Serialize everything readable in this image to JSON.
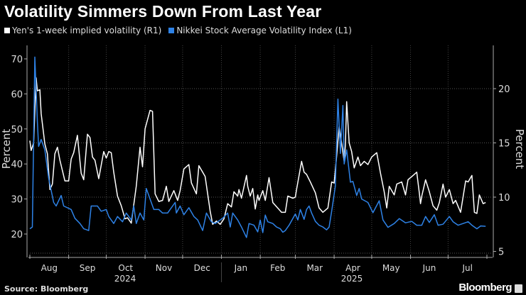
{
  "title": "Volatility Simmers Down From Last Year",
  "source": "Source: Bloomberg",
  "brand": "Bloomberg",
  "chart_data": {
    "type": "line",
    "title": "Volatility Simmers Down From Last Year",
    "y_left": {
      "label": "Percent",
      "range": [
        17,
        73
      ],
      "ticks": [
        20,
        30,
        40,
        50,
        60,
        70
      ]
    },
    "y_right": {
      "label": "Percent",
      "range": [
        4.5,
        24.2
      ],
      "ticks": [
        5,
        10,
        15,
        20
      ]
    },
    "x_range": [
      "2024-08-01",
      "2025-08-01"
    ],
    "x_ticks": [
      "Aug",
      "Sep",
      "Oct",
      "Nov",
      "Dec",
      "Jan",
      "Feb",
      "Mar",
      "Apr",
      "May",
      "Jun",
      "Jul"
    ],
    "x_years": [
      "2024",
      "2025"
    ],
    "grid": true,
    "legend_position": "top-left",
    "series": [
      {
        "name": "Yen's 1-week implied volatility (R1)",
        "axis": "right",
        "color": "#ffffff",
        "points": [
          [
            "2024-08-01",
            15.2
          ],
          [
            "2024-08-02",
            14.3
          ],
          [
            "2024-08-04",
            15.0
          ],
          [
            "2024-08-06",
            21.0
          ],
          [
            "2024-08-07",
            19.8
          ],
          [
            "2024-08-09",
            19.9
          ],
          [
            "2024-08-10",
            17.7
          ],
          [
            "2024-08-13",
            14.9
          ],
          [
            "2024-08-15",
            14.0
          ],
          [
            "2024-08-17",
            10.7
          ],
          [
            "2024-08-19",
            11.2
          ],
          [
            "2024-08-21",
            14.0
          ],
          [
            "2024-08-23",
            14.6
          ],
          [
            "2024-08-25",
            13.4
          ],
          [
            "2024-08-29",
            11.5
          ],
          [
            "2024-09-01",
            11.5
          ],
          [
            "2024-09-03",
            13.5
          ],
          [
            "2024-09-05",
            14.1
          ],
          [
            "2024-09-08",
            15.7
          ],
          [
            "2024-09-11",
            12.2
          ],
          [
            "2024-09-13",
            11.6
          ],
          [
            "2024-09-16",
            15.8
          ],
          [
            "2024-09-18",
            15.5
          ],
          [
            "2024-09-20",
            13.7
          ],
          [
            "2024-09-22",
            13.4
          ],
          [
            "2024-09-25",
            11.7
          ],
          [
            "2024-09-29",
            14.2
          ],
          [
            "2024-10-01",
            13.6
          ],
          [
            "2024-10-03",
            14.2
          ],
          [
            "2024-10-05",
            14.1
          ],
          [
            "2024-10-07",
            12.3
          ],
          [
            "2024-10-10",
            10.1
          ],
          [
            "2024-10-13",
            9.2
          ],
          [
            "2024-10-16",
            8.0
          ],
          [
            "2024-10-18",
            8.1
          ],
          [
            "2024-10-21",
            7.6
          ],
          [
            "2024-10-25",
            11.0
          ],
          [
            "2024-10-28",
            14.6
          ],
          [
            "2024-10-30",
            12.8
          ],
          [
            "2024-11-01",
            16.3
          ],
          [
            "2024-11-05",
            18.0
          ],
          [
            "2024-11-07",
            17.9
          ],
          [
            "2024-11-09",
            10.3
          ],
          [
            "2024-11-12",
            9.6
          ],
          [
            "2024-11-15",
            9.7
          ],
          [
            "2024-11-18",
            11.0
          ],
          [
            "2024-11-20",
            9.6
          ],
          [
            "2024-11-24",
            10.6
          ],
          [
            "2024-11-27",
            9.7
          ],
          [
            "2024-11-29",
            10.6
          ],
          [
            "2024-12-02",
            12.6
          ],
          [
            "2024-12-06",
            13.0
          ],
          [
            "2024-12-08",
            11.3
          ],
          [
            "2024-12-12",
            10.3
          ],
          [
            "2024-12-14",
            12.9
          ],
          [
            "2024-12-17",
            12.3
          ],
          [
            "2024-12-19",
            11.9
          ],
          [
            "2024-12-23",
            8.7
          ],
          [
            "2024-12-25",
            7.5
          ],
          [
            "2024-12-28",
            7.8
          ],
          [
            "2024-12-31",
            7.5
          ],
          [
            "2025-01-03",
            8.0
          ],
          [
            "2025-01-06",
            9.4
          ],
          [
            "2025-01-09",
            9.1
          ],
          [
            "2025-01-11",
            10.5
          ],
          [
            "2025-01-14",
            10.1
          ],
          [
            "2025-01-15",
            10.7
          ],
          [
            "2025-01-17",
            9.9
          ],
          [
            "2025-01-21",
            12.0
          ],
          [
            "2025-01-22",
            11.0
          ],
          [
            "2025-01-24",
            10.1
          ],
          [
            "2025-01-26",
            10.8
          ],
          [
            "2025-01-28",
            8.9
          ],
          [
            "2025-01-30",
            10.2
          ],
          [
            "2025-01-31",
            9.7
          ],
          [
            "2025-02-03",
            10.6
          ],
          [
            "2025-02-05",
            9.7
          ],
          [
            "2025-02-08",
            11.8
          ],
          [
            "2025-02-11",
            9.5
          ],
          [
            "2025-02-18",
            8.6
          ],
          [
            "2025-02-21",
            8.6
          ],
          [
            "2025-02-23",
            10.1
          ],
          [
            "2025-02-27",
            9.9
          ],
          [
            "2025-03-01",
            10.0
          ],
          [
            "2025-03-02",
            10.7
          ],
          [
            "2025-03-06",
            13.3
          ],
          [
            "2025-03-08",
            12.3
          ],
          [
            "2025-03-10",
            12.1
          ],
          [
            "2025-03-13",
            11.4
          ],
          [
            "2025-03-17",
            10.4
          ],
          [
            "2025-03-20",
            9.0
          ],
          [
            "2025-03-23",
            8.6
          ],
          [
            "2025-03-27",
            9.0
          ],
          [
            "2025-03-30",
            11.4
          ],
          [
            "2025-04-01",
            11.3
          ],
          [
            "2025-04-03",
            13.8
          ],
          [
            "2025-04-05",
            16.5
          ],
          [
            "2025-04-07",
            15.0
          ],
          [
            "2025-04-09",
            13.3
          ],
          [
            "2025-04-10",
            14.8
          ],
          [
            "2025-04-11",
            18.8
          ],
          [
            "2025-04-13",
            15.0
          ],
          [
            "2025-04-15",
            14.2
          ],
          [
            "2025-04-17",
            12.7
          ],
          [
            "2025-04-20",
            13.7
          ],
          [
            "2025-04-22",
            12.9
          ],
          [
            "2025-04-25",
            13.3
          ],
          [
            "2025-04-28",
            13.0
          ],
          [
            "2025-05-01",
            13.7
          ],
          [
            "2025-05-05",
            14.1
          ],
          [
            "2025-05-08",
            12.2
          ],
          [
            "2025-05-11",
            10.5
          ],
          [
            "2025-05-13",
            9.0
          ],
          [
            "2025-05-15",
            11.0
          ],
          [
            "2025-05-19",
            10.2
          ],
          [
            "2025-05-21",
            11.2
          ],
          [
            "2025-05-25",
            11.4
          ],
          [
            "2025-05-28",
            10.2
          ],
          [
            "2025-05-30",
            11.6
          ],
          [
            "2025-06-03",
            12.0
          ],
          [
            "2025-06-06",
            12.3
          ],
          [
            "2025-06-08",
            10.4
          ],
          [
            "2025-06-09",
            9.4
          ],
          [
            "2025-06-10",
            10.1
          ],
          [
            "2025-06-13",
            11.6
          ],
          [
            "2025-06-16",
            10.5
          ],
          [
            "2025-06-19",
            9.2
          ],
          [
            "2025-06-22",
            8.8
          ],
          [
            "2025-06-24",
            9.5
          ],
          [
            "2025-06-27",
            11.2
          ],
          [
            "2025-06-29",
            10.0
          ],
          [
            "2025-07-02",
            10.7
          ],
          [
            "2025-07-05",
            9.4
          ],
          [
            "2025-07-07",
            9.7
          ],
          [
            "2025-07-11",
            8.6
          ],
          [
            "2025-07-15",
            11.5
          ],
          [
            "2025-07-17",
            11.4
          ],
          [
            "2025-07-20",
            12.0
          ],
          [
            "2025-07-22",
            8.6
          ],
          [
            "2025-07-24",
            8.5
          ],
          [
            "2025-07-26",
            10.2
          ],
          [
            "2025-07-29",
            9.4
          ],
          [
            "2025-07-31",
            9.5
          ]
        ]
      },
      {
        "name": "Nikkei Stock Average Volatility Index (L1)",
        "axis": "left",
        "color": "#2e82e6",
        "points": [
          [
            "2024-08-01",
            21.5
          ],
          [
            "2024-08-03",
            22
          ],
          [
            "2024-08-05",
            70.5
          ],
          [
            "2024-08-07",
            52
          ],
          [
            "2024-08-08",
            45
          ],
          [
            "2024-08-10",
            47
          ],
          [
            "2024-08-13",
            44
          ],
          [
            "2024-08-16",
            36
          ],
          [
            "2024-08-20",
            29
          ],
          [
            "2024-08-22",
            28
          ],
          [
            "2024-08-26",
            31
          ],
          [
            "2024-08-28",
            28
          ],
          [
            "2024-09-03",
            27
          ],
          [
            "2024-09-06",
            24.5
          ],
          [
            "2024-09-10",
            23
          ],
          [
            "2024-09-13",
            21.5
          ],
          [
            "2024-09-17",
            21
          ],
          [
            "2024-09-19",
            28
          ],
          [
            "2024-09-24",
            28
          ],
          [
            "2024-09-27",
            26.5
          ],
          [
            "2024-10-01",
            27
          ],
          [
            "2024-10-03",
            25
          ],
          [
            "2024-10-07",
            23
          ],
          [
            "2024-10-10",
            25
          ],
          [
            "2024-10-14",
            23.5
          ],
          [
            "2024-10-17",
            26
          ],
          [
            "2024-10-21",
            24
          ],
          [
            "2024-10-23",
            28
          ],
          [
            "2024-10-25",
            23
          ],
          [
            "2024-10-28",
            26
          ],
          [
            "2024-10-31",
            24
          ],
          [
            "2024-11-02",
            33
          ],
          [
            "2024-11-05",
            30
          ],
          [
            "2024-11-08",
            27
          ],
          [
            "2024-11-12",
            27
          ],
          [
            "2024-11-15",
            26
          ],
          [
            "2024-11-19",
            26
          ],
          [
            "2024-11-21",
            27
          ],
          [
            "2024-11-25",
            29
          ],
          [
            "2024-11-26",
            26
          ],
          [
            "2024-11-29",
            28
          ],
          [
            "2024-12-02",
            25.5
          ],
          [
            "2024-12-06",
            27.5
          ],
          [
            "2024-12-10",
            25
          ],
          [
            "2024-12-13",
            24
          ],
          [
            "2024-12-17",
            21
          ],
          [
            "2024-12-20",
            26
          ],
          [
            "2024-12-24",
            23.5
          ],
          [
            "2024-12-27",
            23
          ],
          [
            "2025-01-02",
            24.5
          ],
          [
            "2025-01-06",
            26
          ],
          [
            "2025-01-08",
            22
          ],
          [
            "2025-01-10",
            26
          ],
          [
            "2025-01-14",
            24
          ],
          [
            "2025-01-17",
            22
          ],
          [
            "2025-01-21",
            19
          ],
          [
            "2025-01-23",
            23
          ],
          [
            "2025-01-27",
            22.5
          ],
          [
            "2025-01-30",
            20.6
          ],
          [
            "2025-02-01",
            24
          ],
          [
            "2025-02-03",
            20.4
          ],
          [
            "2025-02-05",
            25.4
          ],
          [
            "2025-02-07",
            23.5
          ],
          [
            "2025-02-11",
            23
          ],
          [
            "2025-02-14",
            22
          ],
          [
            "2025-02-17",
            21.5
          ],
          [
            "2025-02-19",
            20.5
          ],
          [
            "2025-02-21",
            21
          ],
          [
            "2025-02-24",
            22.5
          ],
          [
            "2025-02-27",
            24.4
          ],
          [
            "2025-03-01",
            25.7
          ],
          [
            "2025-03-03",
            24.0
          ],
          [
            "2025-03-05",
            27
          ],
          [
            "2025-03-08",
            24.2
          ],
          [
            "2025-03-10",
            27
          ],
          [
            "2025-03-12",
            28
          ],
          [
            "2025-03-14",
            26
          ],
          [
            "2025-03-17",
            23.6
          ],
          [
            "2025-03-20",
            22.5
          ],
          [
            "2025-03-23",
            22
          ],
          [
            "2025-03-26",
            21.2
          ],
          [
            "2025-03-28",
            22
          ],
          [
            "2025-03-30",
            26.5
          ],
          [
            "2025-04-02",
            33.7
          ],
          [
            "2025-04-04",
            58.5
          ],
          [
            "2025-04-06",
            43
          ],
          [
            "2025-04-08",
            56.7
          ],
          [
            "2025-04-09",
            40
          ],
          [
            "2025-04-11",
            44
          ],
          [
            "2025-04-14",
            34.8
          ],
          [
            "2025-04-16",
            35
          ],
          [
            "2025-04-19",
            31
          ],
          [
            "2025-04-21",
            33
          ],
          [
            "2025-04-23",
            30
          ],
          [
            "2025-04-28",
            29
          ],
          [
            "2025-05-02",
            26.1
          ],
          [
            "2025-05-07",
            29.5
          ],
          [
            "2025-05-10",
            24
          ],
          [
            "2025-05-14",
            21.9
          ],
          [
            "2025-05-19",
            23
          ],
          [
            "2025-05-23",
            24.4
          ],
          [
            "2025-05-28",
            23.2
          ],
          [
            "2025-06-02",
            23.6
          ],
          [
            "2025-06-06",
            22.5
          ],
          [
            "2025-06-10",
            22.5
          ],
          [
            "2025-06-13",
            25
          ],
          [
            "2025-06-16",
            23.3
          ],
          [
            "2025-06-20",
            25.5
          ],
          [
            "2025-06-23",
            22.5
          ],
          [
            "2025-06-27",
            22.8
          ],
          [
            "2025-07-02",
            25
          ],
          [
            "2025-07-05",
            23.5
          ],
          [
            "2025-07-09",
            22.5
          ],
          [
            "2025-07-13",
            23
          ],
          [
            "2025-07-17",
            23.5
          ],
          [
            "2025-07-20",
            22.5
          ],
          [
            "2025-07-24",
            21.5
          ],
          [
            "2025-07-27",
            22.3
          ],
          [
            "2025-07-31",
            22.2
          ]
        ]
      }
    ]
  }
}
